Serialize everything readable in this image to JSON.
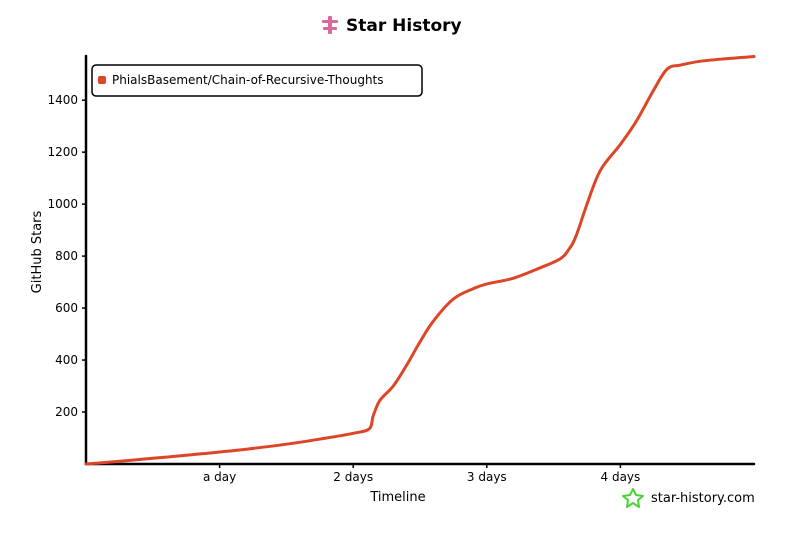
{
  "header": {
    "title": "Star History",
    "logo_icon": "star-history-logo-icon"
  },
  "watermark": {
    "text": "star-history.com",
    "icon": "star-outline-icon",
    "icon_color": "#4cd137"
  },
  "chart_data": {
    "type": "line",
    "title": "Star History",
    "xlabel": "Timeline",
    "ylabel": "GitHub Stars",
    "x_unit": "days",
    "xlim": [
      0,
      5
    ],
    "ylim": [
      0,
      1570
    ],
    "x_ticks": [
      {
        "value": 1,
        "label": "a day"
      },
      {
        "value": 2,
        "label": "2 days"
      },
      {
        "value": 3,
        "label": "3 days"
      },
      {
        "value": 4,
        "label": "4 days"
      }
    ],
    "y_ticks": [
      200,
      400,
      600,
      800,
      1000,
      1200,
      1400
    ],
    "grid": false,
    "legend_position": "top-left",
    "series": [
      {
        "name": "PhialsBasement/Chain-of-Recursive-Thoughts",
        "color": "#dd4528",
        "points": [
          [
            0.0,
            0
          ],
          [
            0.2,
            8
          ],
          [
            0.5,
            22
          ],
          [
            0.8,
            36
          ],
          [
            1.0,
            46
          ],
          [
            1.2,
            57
          ],
          [
            1.5,
            76
          ],
          [
            1.8,
            100
          ],
          [
            2.0,
            118
          ],
          [
            2.12,
            135
          ],
          [
            2.15,
            185
          ],
          [
            2.2,
            245
          ],
          [
            2.3,
            300
          ],
          [
            2.4,
            380
          ],
          [
            2.5,
            470
          ],
          [
            2.6,
            550
          ],
          [
            2.75,
            635
          ],
          [
            2.9,
            675
          ],
          [
            3.0,
            693
          ],
          [
            3.2,
            715
          ],
          [
            3.4,
            755
          ],
          [
            3.55,
            790
          ],
          [
            3.62,
            830
          ],
          [
            3.67,
            880
          ],
          [
            3.75,
            1000
          ],
          [
            3.85,
            1130
          ],
          [
            4.0,
            1230
          ],
          [
            4.12,
            1320
          ],
          [
            4.25,
            1440
          ],
          [
            4.35,
            1520
          ],
          [
            4.45,
            1535
          ],
          [
            4.6,
            1550
          ],
          [
            4.8,
            1560
          ],
          [
            5.0,
            1568
          ]
        ]
      }
    ]
  }
}
